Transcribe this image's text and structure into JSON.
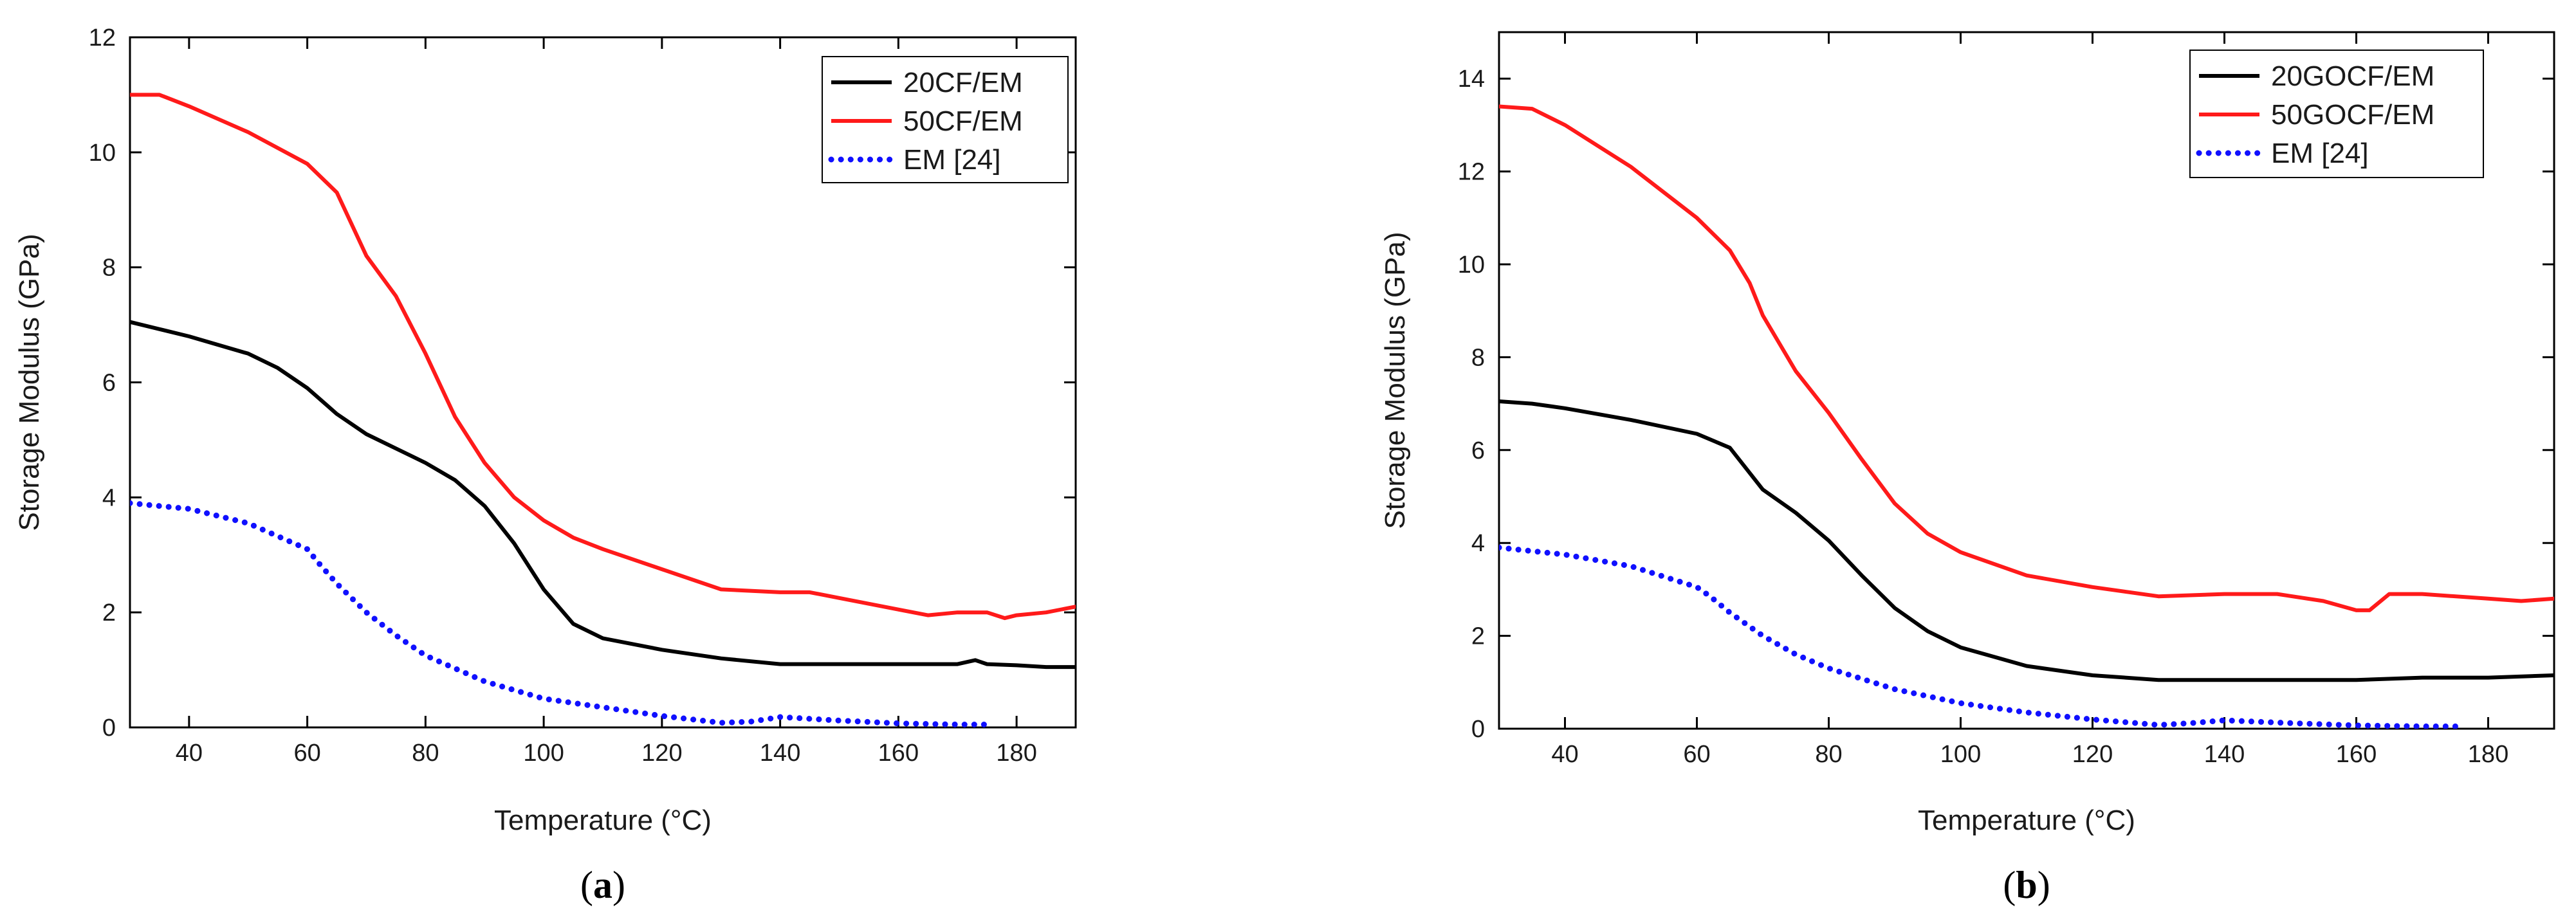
{
  "colors": {
    "background": "#ffffff",
    "axis": "#000000",
    "text": "#1a1a1a"
  },
  "chart_data": [
    {
      "type": "line",
      "panel": "a",
      "panel_label": {
        "open": "(",
        "letter": "a",
        "close": ")"
      },
      "xlabel": "Temperature (°C)",
      "ylabel": "Storage Modulus (GPa)",
      "xlim": [
        30,
        190
      ],
      "ylim": [
        0,
        12
      ],
      "xticks": [
        40,
        60,
        80,
        100,
        120,
        140,
        160,
        180
      ],
      "yticks": [
        0,
        2,
        4,
        6,
        8,
        10,
        12
      ],
      "legend_position": "top-right",
      "series": [
        {
          "name": "20CF/EM",
          "color": "#000000",
          "style": "solid",
          "x": [
            30,
            40,
            50,
            55,
            60,
            65,
            70,
            75,
            80,
            85,
            90,
            95,
            100,
            105,
            110,
            120,
            130,
            140,
            150,
            160,
            170,
            173,
            175,
            180,
            185,
            190
          ],
          "y": [
            7.05,
            6.8,
            6.5,
            6.25,
            5.9,
            5.45,
            5.1,
            4.85,
            4.6,
            4.3,
            3.85,
            3.2,
            2.4,
            1.8,
            1.55,
            1.35,
            1.2,
            1.1,
            1.1,
            1.1,
            1.1,
            1.17,
            1.1,
            1.08,
            1.05,
            1.05
          ]
        },
        {
          "name": "50CF/EM",
          "color": "#ff1a1a",
          "style": "solid",
          "x": [
            30,
            35,
            40,
            50,
            60,
            65,
            70,
            75,
            80,
            85,
            90,
            95,
            100,
            105,
            110,
            120,
            130,
            140,
            145,
            150,
            160,
            165,
            170,
            175,
            178,
            180,
            185,
            190
          ],
          "y": [
            11.0,
            11.0,
            10.8,
            10.35,
            9.8,
            9.3,
            8.2,
            7.5,
            6.5,
            5.4,
            4.6,
            4.0,
            3.6,
            3.3,
            3.1,
            2.75,
            2.4,
            2.35,
            2.35,
            2.25,
            2.05,
            1.95,
            2.0,
            2.0,
            1.9,
            1.95,
            2.0,
            2.1
          ]
        },
        {
          "name": "EM [24]",
          "color": "#1010ff",
          "style": "dotted",
          "x": [
            30,
            40,
            50,
            60,
            62,
            65,
            70,
            75,
            80,
            90,
            100,
            110,
            120,
            130,
            135,
            140,
            145,
            150,
            160,
            170,
            176
          ],
          "y": [
            3.9,
            3.8,
            3.55,
            3.1,
            2.85,
            2.5,
            2.0,
            1.6,
            1.25,
            0.8,
            0.5,
            0.35,
            0.2,
            0.08,
            0.1,
            0.18,
            0.15,
            0.12,
            0.07,
            0.05,
            0.05
          ]
        }
      ]
    },
    {
      "type": "line",
      "panel": "b",
      "panel_label": {
        "open": "(",
        "letter": "b",
        "close": ")"
      },
      "xlabel": "Temperature (°C)",
      "ylabel": "Storage Modulus (GPa)",
      "xlim": [
        30,
        190
      ],
      "ylim": [
        0,
        15
      ],
      "xticks": [
        40,
        60,
        80,
        100,
        120,
        140,
        160,
        180
      ],
      "yticks": [
        0,
        2,
        4,
        6,
        8,
        10,
        12,
        14
      ],
      "legend_position": "top-right",
      "series": [
        {
          "name": "20GOCF/EM",
          "color": "#000000",
          "style": "solid",
          "x": [
            30,
            35,
            40,
            50,
            60,
            65,
            70,
            75,
            80,
            85,
            90,
            95,
            100,
            110,
            120,
            130,
            140,
            150,
            160,
            170,
            180,
            190
          ],
          "y": [
            7.05,
            7.0,
            6.9,
            6.65,
            6.35,
            6.05,
            5.15,
            4.65,
            4.05,
            3.3,
            2.6,
            2.1,
            1.75,
            1.35,
            1.15,
            1.05,
            1.05,
            1.05,
            1.05,
            1.1,
            1.1,
            1.15
          ]
        },
        {
          "name": "50GOCF/EM",
          "color": "#ff1a1a",
          "style": "solid",
          "x": [
            30,
            35,
            40,
            50,
            60,
            65,
            68,
            70,
            75,
            80,
            85,
            90,
            95,
            100,
            110,
            120,
            130,
            140,
            148,
            155,
            160,
            162,
            165,
            170,
            180,
            185,
            190
          ],
          "y": [
            13.4,
            13.35,
            13.0,
            12.1,
            11.0,
            10.3,
            9.6,
            8.9,
            7.7,
            6.8,
            5.8,
            4.85,
            4.2,
            3.8,
            3.3,
            3.05,
            2.85,
            2.9,
            2.9,
            2.75,
            2.55,
            2.55,
            2.9,
            2.9,
            2.8,
            2.75,
            2.8
          ]
        },
        {
          "name": "EM [24]",
          "color": "#1010ff",
          "style": "dotted",
          "x": [
            30,
            40,
            50,
            60,
            62,
            65,
            70,
            75,
            80,
            90,
            100,
            110,
            120,
            130,
            135,
            140,
            145,
            150,
            160,
            170,
            176
          ],
          "y": [
            3.9,
            3.75,
            3.5,
            3.05,
            2.85,
            2.5,
            2.0,
            1.6,
            1.3,
            0.85,
            0.55,
            0.35,
            0.2,
            0.08,
            0.12,
            0.18,
            0.15,
            0.12,
            0.07,
            0.05,
            0.05
          ]
        }
      ]
    }
  ]
}
